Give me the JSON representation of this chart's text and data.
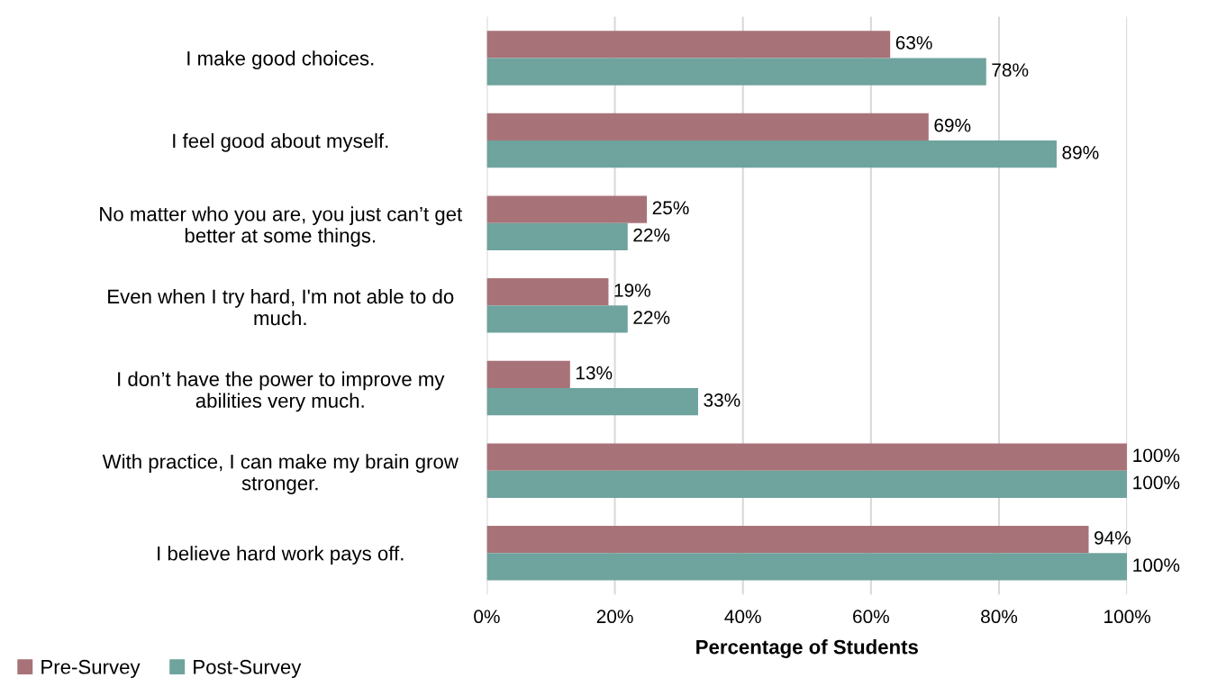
{
  "chart_data": {
    "type": "bar",
    "orientation": "horizontal",
    "xlabel": "Percentage of Students",
    "categories": [
      "I make good choices.",
      "I feel good about myself.",
      "No matter who you are, you just can’t get\nbetter at some things.",
      "Even when I try hard, I'm not able to do\nmuch.",
      "I don’t have the power to improve my\nabilities very much.",
      "With practice, I can make my brain grow\nstronger.",
      "I believe hard work pays off."
    ],
    "series": [
      {
        "name": "Pre-Survey",
        "color": "#a87378",
        "values": [
          63,
          69,
          25,
          19,
          13,
          100,
          94
        ],
        "value_labels": [
          "63%",
          "69%",
          "25%",
          "19%",
          "13%",
          "100%",
          "94%"
        ]
      },
      {
        "name": "Post-Survey",
        "color": "#6fa39d",
        "values": [
          78,
          89,
          22,
          22,
          33,
          100,
          100
        ],
        "value_labels": [
          "78%",
          "89%",
          "22%",
          "22%",
          "33%",
          "100%",
          "100%"
        ]
      }
    ],
    "xlim": [
      0,
      100
    ],
    "xticks": [
      {
        "value": 0,
        "label": "0%"
      },
      {
        "value": 20,
        "label": "20%"
      },
      {
        "value": 40,
        "label": "40%"
      },
      {
        "value": 60,
        "label": "60%"
      },
      {
        "value": 80,
        "label": "80%"
      },
      {
        "value": 100,
        "label": "100%"
      }
    ],
    "grid": "x",
    "legend": "bottom left"
  }
}
